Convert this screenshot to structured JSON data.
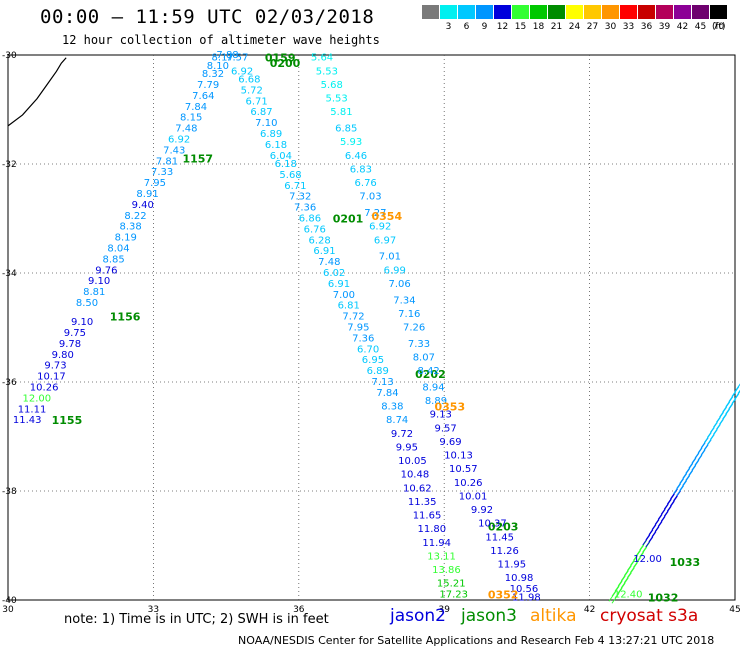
{
  "header": {
    "title": "00:00 – 11:59 UTC 02/03/2018",
    "subtitle": "12 hour collection of altimeter wave heights",
    "unit": "(ft)"
  },
  "scale": [
    {
      "label": "",
      "color": "#7a7a7a"
    },
    {
      "label": "3",
      "color": "#00f0f0"
    },
    {
      "label": "6",
      "color": "#00c8ff"
    },
    {
      "label": "9",
      "color": "#0096ff"
    },
    {
      "label": "12",
      "color": "#0000dc"
    },
    {
      "label": "15",
      "color": "#32ff32"
    },
    {
      "label": "18",
      "color": "#00c800"
    },
    {
      "label": "21",
      "color": "#008c00"
    },
    {
      "label": "24",
      "color": "#ffff00"
    },
    {
      "label": "27",
      "color": "#ffc800"
    },
    {
      "label": "30",
      "color": "#ff9600"
    },
    {
      "label": "33",
      "color": "#ff0000"
    },
    {
      "label": "36",
      "color": "#c80000"
    },
    {
      "label": "39",
      "color": "#b4005a"
    },
    {
      "label": "42",
      "color": "#8c0096"
    },
    {
      "label": "45",
      "color": "#6e006e"
    },
    {
      "label": "70",
      "color": "#000000"
    }
  ],
  "footer": {
    "note": "note:  1) Time is in UTC;  2) SWH is in feet",
    "satellites": [
      {
        "name": "jason2",
        "color": "#0000dc"
      },
      {
        "name": "jason3",
        "color": "#008c00"
      },
      {
        "name": "altika",
        "color": "#ff9600"
      },
      {
        "name": "cryosat s3a",
        "color": "#d00000"
      }
    ],
    "credit": "NOAA/NESDIS Center for Satellite Applications and Research     Feb  4 13:27:21 UTC 2018"
  },
  "chart_data": {
    "type": "scatter",
    "title": "00:00 – 11:59 UTC 02/03/2018",
    "xlim": [
      30,
      45
    ],
    "ylim": [
      -40,
      -30
    ],
    "x_ticks": [
      "30",
      "33",
      "36",
      "39",
      "42",
      "45"
    ],
    "y_ticks": [
      "-30",
      "-32",
      "-34",
      "-36",
      "-38",
      "-40"
    ],
    "grid": true,
    "coastline": [
      [
        30.0,
        -31.3
      ],
      [
        30.3,
        -31.1
      ],
      [
        30.6,
        -30.8
      ],
      [
        30.8,
        -30.55
      ],
      [
        31.0,
        -30.3
      ],
      [
        31.1,
        -30.15
      ],
      [
        31.2,
        -30.05
      ]
    ],
    "tracks": [
      {
        "satellite": "jason2",
        "times": [
          {
            "label": "1155",
            "x": 30.9,
            "y": -36.7
          },
          {
            "label": "1156",
            "x": 32.1,
            "y": -34.8
          },
          {
            "label": "1157",
            "x": 33.6,
            "y": -31.9
          }
        ],
        "points": [
          {
            "v": "11.43",
            "x": 30.1,
            "y": -36.7,
            "c": "#0000dc"
          },
          {
            "v": "11.11",
            "x": 30.2,
            "y": -36.5,
            "c": "#0000dc"
          },
          {
            "v": "12.00",
            "x": 30.3,
            "y": -36.3,
            "c": "#32ff32"
          },
          {
            "v": "10.26",
            "x": 30.45,
            "y": -36.1,
            "c": "#0000dc"
          },
          {
            "v": "10.17",
            "x": 30.6,
            "y": -35.9,
            "c": "#0000dc"
          },
          {
            "v": "9.73",
            "x": 30.75,
            "y": -35.7,
            "c": "#0000dc"
          },
          {
            "v": "9.80",
            "x": 30.9,
            "y": -35.5,
            "c": "#0000dc"
          },
          {
            "v": "9.78",
            "x": 31.05,
            "y": -35.3,
            "c": "#0000dc"
          },
          {
            "v": "9.75",
            "x": 31.15,
            "y": -35.1,
            "c": "#0000dc"
          },
          {
            "v": "9.10",
            "x": 31.3,
            "y": -34.9,
            "c": "#0000dc"
          },
          {
            "v": "8.50",
            "x": 31.4,
            "y": -34.55,
            "c": "#0096ff"
          },
          {
            "v": "8.81",
            "x": 31.55,
            "y": -34.35,
            "c": "#0096ff"
          },
          {
            "v": "9.10",
            "x": 31.65,
            "y": -34.15,
            "c": "#0000dc"
          },
          {
            "v": "9.76",
            "x": 31.8,
            "y": -33.95,
            "c": "#0000dc"
          },
          {
            "v": "8.85",
            "x": 31.95,
            "y": -33.75,
            "c": "#0096ff"
          },
          {
            "v": "8.04",
            "x": 32.05,
            "y": -33.55,
            "c": "#0096ff"
          },
          {
            "v": "8.19",
            "x": 32.2,
            "y": -33.35,
            "c": "#0096ff"
          },
          {
            "v": "8.38",
            "x": 32.3,
            "y": -33.15,
            "c": "#0096ff"
          },
          {
            "v": "8.22",
            "x": 32.4,
            "y": -32.95,
            "c": "#0096ff"
          },
          {
            "v": "9.40",
            "x": 32.55,
            "y": -32.75,
            "c": "#0000dc"
          },
          {
            "v": "8.91",
            "x": 32.65,
            "y": -32.55,
            "c": "#0096ff"
          },
          {
            "v": "7.95",
            "x": 32.8,
            "y": -32.35,
            "c": "#0096ff"
          },
          {
            "v": "7.33",
            "x": 32.95,
            "y": -32.15,
            "c": "#0096ff"
          },
          {
            "v": "7.81",
            "x": 33.05,
            "y": -31.95,
            "c": "#0096ff"
          },
          {
            "v": "7.43",
            "x": 33.2,
            "y": -31.75,
            "c": "#0096ff"
          },
          {
            "v": "6.92",
            "x": 33.3,
            "y": -31.55,
            "c": "#00c8ff"
          },
          {
            "v": "7.48",
            "x": 33.45,
            "y": -31.35,
            "c": "#0096ff"
          },
          {
            "v": "8.15",
            "x": 33.55,
            "y": -31.15,
            "c": "#0096ff"
          },
          {
            "v": "7.84",
            "x": 33.65,
            "y": -30.95,
            "c": "#0096ff"
          },
          {
            "v": "7.64",
            "x": 33.8,
            "y": -30.75,
            "c": "#0096ff"
          },
          {
            "v": "7.79",
            "x": 33.9,
            "y": -30.55,
            "c": "#0096ff"
          },
          {
            "v": "8.32",
            "x": 34.0,
            "y": -30.35,
            "c": "#0096ff"
          },
          {
            "v": "8.10",
            "x": 34.1,
            "y": -30.2,
            "c": "#0096ff"
          },
          {
            "v": "8.17",
            "x": 34.2,
            "y": -30.05,
            "c": "#0096ff"
          }
        ]
      },
      {
        "satellite": "jason3",
        "times": [
          {
            "label": "0159",
            "x": 35.3,
            "y": -30.05
          },
          {
            "label": "0200",
            "x": 35.4,
            "y": -30.15
          },
          {
            "label": "0201",
            "x": 36.7,
            "y": -33.0
          },
          {
            "label": "0202",
            "x": 38.4,
            "y": -35.85
          },
          {
            "label": "0203",
            "x": 39.9,
            "y": -38.65
          }
        ],
        "points": [
          {
            "v": "7.88",
            "x": 34.3,
            "y": -30.0,
            "c": "#0096ff"
          },
          {
            "v": "7.57",
            "x": 34.5,
            "y": -30.05,
            "c": "#0096ff"
          },
          {
            "v": "6.92",
            "x": 34.6,
            "y": -30.3,
            "c": "#00c8ff"
          },
          {
            "v": "6.68",
            "x": 34.75,
            "y": -30.45,
            "c": "#00c8ff"
          },
          {
            "v": "5.72",
            "x": 34.8,
            "y": -30.65,
            "c": "#00c8ff"
          },
          {
            "v": "6.71",
            "x": 34.9,
            "y": -30.85,
            "c": "#00c8ff"
          },
          {
            "v": "6.87",
            "x": 35.0,
            "y": -31.05,
            "c": "#00c8ff"
          },
          {
            "v": "7.10",
            "x": 35.1,
            "y": -31.25,
            "c": "#0096ff"
          },
          {
            "v": "6.89",
            "x": 35.2,
            "y": -31.45,
            "c": "#00c8ff"
          },
          {
            "v": "6.18",
            "x": 35.3,
            "y": -31.65,
            "c": "#00c8ff"
          },
          {
            "v": "6.04",
            "x": 35.4,
            "y": -31.85,
            "c": "#00c8ff"
          },
          {
            "v": "6.18",
            "x": 35.5,
            "y": -32.0,
            "c": "#00c8ff"
          },
          {
            "v": "5.68",
            "x": 35.6,
            "y": -32.2,
            "c": "#00c8ff"
          },
          {
            "v": "6.71",
            "x": 35.7,
            "y": -32.4,
            "c": "#00c8ff"
          },
          {
            "v": "7.32",
            "x": 35.8,
            "y": -32.6,
            "c": "#0096ff"
          },
          {
            "v": "7.36",
            "x": 35.9,
            "y": -32.8,
            "c": "#0096ff"
          },
          {
            "v": "6.86",
            "x": 36.0,
            "y": -33.0,
            "c": "#00c8ff"
          },
          {
            "v": "6.76",
            "x": 36.1,
            "y": -33.2,
            "c": "#00c8ff"
          },
          {
            "v": "6.28",
            "x": 36.2,
            "y": -33.4,
            "c": "#00c8ff"
          },
          {
            "v": "6.91",
            "x": 36.3,
            "y": -33.6,
            "c": "#00c8ff"
          },
          {
            "v": "7.48",
            "x": 36.4,
            "y": -33.8,
            "c": "#0096ff"
          },
          {
            "v": "6.02",
            "x": 36.5,
            "y": -34.0,
            "c": "#00c8ff"
          },
          {
            "v": "6.91",
            "x": 36.6,
            "y": -34.2,
            "c": "#00c8ff"
          },
          {
            "v": "7.00",
            "x": 36.7,
            "y": -34.4,
            "c": "#0096ff"
          },
          {
            "v": "6.81",
            "x": 36.8,
            "y": -34.6,
            "c": "#00c8ff"
          },
          {
            "v": "7.72",
            "x": 36.9,
            "y": -34.8,
            "c": "#0096ff"
          },
          {
            "v": "7.95",
            "x": 37.0,
            "y": -35.0,
            "c": "#0096ff"
          },
          {
            "v": "7.36",
            "x": 37.1,
            "y": -35.2,
            "c": "#0096ff"
          },
          {
            "v": "6.70",
            "x": 37.2,
            "y": -35.4,
            "c": "#00c8ff"
          },
          {
            "v": "6.95",
            "x": 37.3,
            "y": -35.6,
            "c": "#00c8ff"
          },
          {
            "v": "6.89",
            "x": 37.4,
            "y": -35.8,
            "c": "#00c8ff"
          },
          {
            "v": "7.13",
            "x": 37.5,
            "y": -36.0,
            "c": "#0096ff"
          },
          {
            "v": "7.84",
            "x": 37.6,
            "y": -36.2,
            "c": "#0096ff"
          },
          {
            "v": "8.38",
            "x": 37.7,
            "y": -36.45,
            "c": "#0096ff"
          },
          {
            "v": "8.74",
            "x": 37.8,
            "y": -36.7,
            "c": "#0096ff"
          },
          {
            "v": "9.72",
            "x": 37.9,
            "y": -36.95,
            "c": "#0000dc"
          },
          {
            "v": "9.95",
            "x": 38.0,
            "y": -37.2,
            "c": "#0000dc"
          },
          {
            "v": "10.05",
            "x": 38.05,
            "y": -37.45,
            "c": "#0000dc"
          },
          {
            "v": "10.48",
            "x": 38.1,
            "y": -37.7,
            "c": "#0000dc"
          },
          {
            "v": "10.62",
            "x": 38.15,
            "y": -37.95,
            "c": "#0000dc"
          },
          {
            "v": "11.35",
            "x": 38.25,
            "y": -38.2,
            "c": "#0000dc"
          },
          {
            "v": "11.65",
            "x": 38.35,
            "y": -38.45,
            "c": "#0000dc"
          },
          {
            "v": "11.80",
            "x": 38.45,
            "y": -38.7,
            "c": "#0000dc"
          },
          {
            "v": "11.94",
            "x": 38.55,
            "y": -38.95,
            "c": "#0000dc"
          },
          {
            "v": "13.11",
            "x": 38.65,
            "y": -39.2,
            "c": "#32ff32"
          },
          {
            "v": "13.86",
            "x": 38.75,
            "y": -39.45,
            "c": "#32ff32"
          },
          {
            "v": "15.21",
            "x": 38.85,
            "y": -39.7,
            "c": "#00c800"
          },
          {
            "v": "17.23",
            "x": 38.9,
            "y": -39.9,
            "c": "#00c800"
          }
        ]
      },
      {
        "satellite": "jason3",
        "times": [],
        "points": [
          {
            "v": "5.64",
            "x": 36.25,
            "y": -30.05,
            "c": "#00f0f0"
          },
          {
            "v": "5.53",
            "x": 36.35,
            "y": -30.3,
            "c": "#00f0f0"
          },
          {
            "v": "5.68",
            "x": 36.45,
            "y": -30.55,
            "c": "#00f0f0"
          },
          {
            "v": "5.53",
            "x": 36.55,
            "y": -30.8,
            "c": "#00f0f0"
          },
          {
            "v": "5.81",
            "x": 36.65,
            "y": -31.05,
            "c": "#00f0f0"
          },
          {
            "v": "6.85",
            "x": 36.75,
            "y": -31.35,
            "c": "#00c8ff"
          },
          {
            "v": "5.93",
            "x": 36.85,
            "y": -31.6,
            "c": "#00f0f0"
          },
          {
            "v": "6.46",
            "x": 36.95,
            "y": -31.85,
            "c": "#00c8ff"
          },
          {
            "v": "6.83",
            "x": 37.05,
            "y": -32.1,
            "c": "#00c8ff"
          },
          {
            "v": "6.76",
            "x": 37.15,
            "y": -32.35,
            "c": "#00c8ff"
          },
          {
            "v": "7.03",
            "x": 37.25,
            "y": -32.6,
            "c": "#0096ff"
          },
          {
            "v": "7.27",
            "x": 37.35,
            "y": -32.9,
            "c": "#0096ff"
          },
          {
            "v": "6.92",
            "x": 37.45,
            "y": -33.15,
            "c": "#00c8ff"
          },
          {
            "v": "6.97",
            "x": 37.55,
            "y": -33.4,
            "c": "#00c8ff"
          },
          {
            "v": "7.01",
            "x": 37.65,
            "y": -33.7,
            "c": "#0096ff"
          },
          {
            "v": "6.99",
            "x": 37.75,
            "y": -33.95,
            "c": "#00c8ff"
          },
          {
            "v": "7.06",
            "x": 37.85,
            "y": -34.2,
            "c": "#0096ff"
          },
          {
            "v": "7.34",
            "x": 37.95,
            "y": -34.5,
            "c": "#0096ff"
          },
          {
            "v": "7.16",
            "x": 38.05,
            "y": -34.75,
            "c": "#0096ff"
          },
          {
            "v": "7.26",
            "x": 38.15,
            "y": -35.0,
            "c": "#0096ff"
          },
          {
            "v": "7.33",
            "x": 38.25,
            "y": -35.3,
            "c": "#0096ff"
          },
          {
            "v": "8.07",
            "x": 38.35,
            "y": -35.55,
            "c": "#0096ff"
          },
          {
            "v": "8.42",
            "x": 38.45,
            "y": -35.8,
            "c": "#0096ff"
          },
          {
            "v": "8.94",
            "x": 38.55,
            "y": -36.1,
            "c": "#0096ff"
          },
          {
            "v": "8.89",
            "x": 38.6,
            "y": -36.35,
            "c": "#0096ff"
          },
          {
            "v": "9.13",
            "x": 38.7,
            "y": -36.6,
            "c": "#0000dc"
          },
          {
            "v": "9.57",
            "x": 38.8,
            "y": -36.85,
            "c": "#0000dc"
          },
          {
            "v": "9.69",
            "x": 38.9,
            "y": -37.1,
            "c": "#0000dc"
          },
          {
            "v": "10.13",
            "x": 39.0,
            "y": -37.35,
            "c": "#0000dc"
          },
          {
            "v": "10.57",
            "x": 39.1,
            "y": -37.6,
            "c": "#0000dc"
          },
          {
            "v": "10.26",
            "x": 39.2,
            "y": -37.85,
            "c": "#0000dc"
          },
          {
            "v": "10.01",
            "x": 39.3,
            "y": -38.1,
            "c": "#0000dc"
          },
          {
            "v": "9.92",
            "x": 39.55,
            "y": -38.35,
            "c": "#0000dc"
          },
          {
            "v": "10.37",
            "x": 39.7,
            "y": -38.6,
            "c": "#0000dc"
          },
          {
            "v": "11.45",
            "x": 39.85,
            "y": -38.85,
            "c": "#0000dc"
          },
          {
            "v": "11.26",
            "x": 39.95,
            "y": -39.1,
            "c": "#0000dc"
          },
          {
            "v": "11.95",
            "x": 40.1,
            "y": -39.35,
            "c": "#0000dc"
          },
          {
            "v": "10.98",
            "x": 40.25,
            "y": -39.6,
            "c": "#0000dc"
          },
          {
            "v": "10.56",
            "x": 40.35,
            "y": -39.8,
            "c": "#0000dc"
          },
          {
            "v": "11.98",
            "x": 40.4,
            "y": -39.95,
            "c": "#0000dc"
          }
        ]
      },
      {
        "satellite": "altika",
        "times": [
          {
            "label": "0354",
            "x": 37.5,
            "y": -32.95
          },
          {
            "label": "0353",
            "x": 38.8,
            "y": -36.45
          },
          {
            "label": "0352",
            "x": 39.9,
            "y": -39.9
          }
        ],
        "points": []
      },
      {
        "satellite": "jason2",
        "times": [
          {
            "label": "1033",
            "x": 43.65,
            "y": -39.3
          },
          {
            "label": "1032",
            "x": 43.2,
            "y": -39.95
          }
        ],
        "points": [
          {
            "v": "12.00",
            "x": 42.9,
            "y": -39.25,
            "c": "#0000dc"
          },
          {
            "v": "12.40",
            "x": 42.5,
            "y": -39.9,
            "c": "#32ff32"
          }
        ]
      }
    ],
    "swath": {
      "lines": 42,
      "start": [
        42.4,
        -39.95
      ],
      "end": [
        45.0,
        -36.1
      ],
      "colors": [
        "#32ff32",
        "#0000dc",
        "#0096ff",
        "#00c8ff"
      ]
    }
  }
}
